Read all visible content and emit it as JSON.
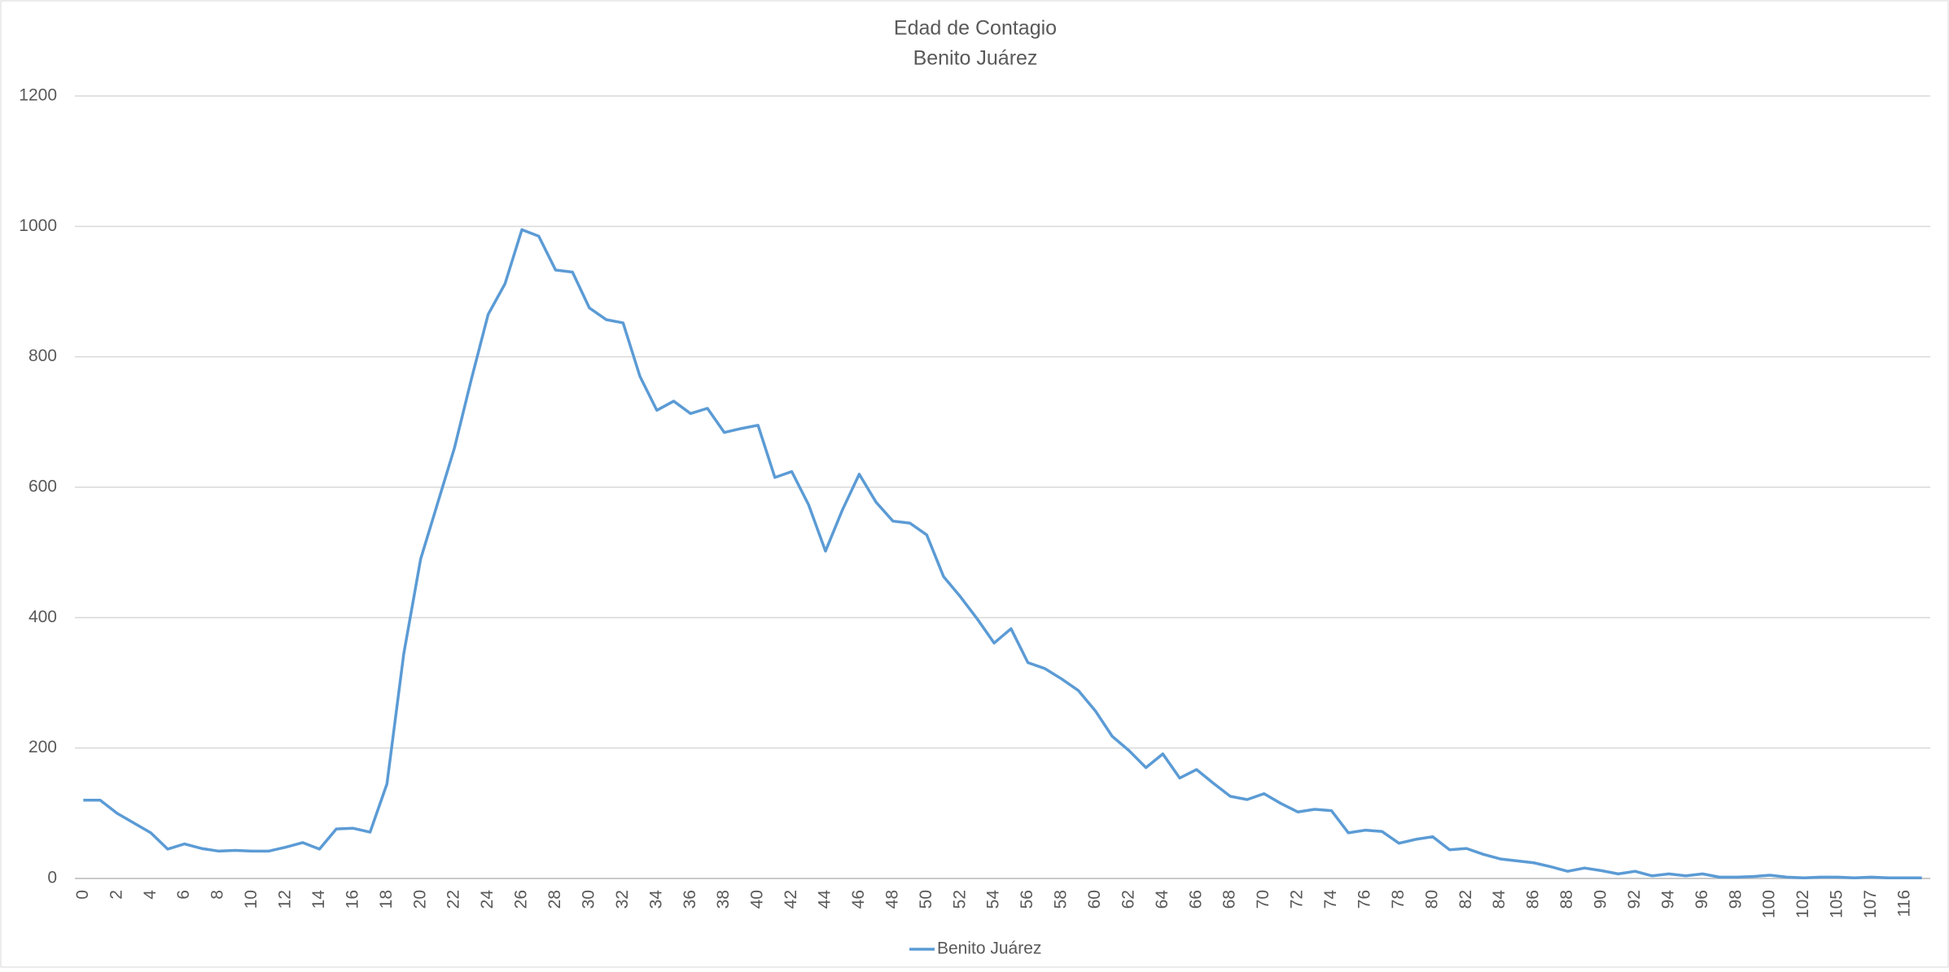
{
  "chart_data": {
    "type": "line",
    "title": "Edad de Contagio",
    "subtitle": "Benito Juárez",
    "categories": [
      0,
      null,
      2,
      null,
      4,
      null,
      6,
      null,
      8,
      null,
      10,
      null,
      12,
      null,
      14,
      null,
      16,
      null,
      18,
      null,
      20,
      null,
      22,
      null,
      24,
      null,
      26,
      null,
      28,
      null,
      30,
      null,
      32,
      null,
      34,
      null,
      36,
      null,
      38,
      null,
      40,
      null,
      42,
      null,
      44,
      null,
      46,
      null,
      48,
      null,
      50,
      null,
      52,
      null,
      54,
      null,
      56,
      null,
      58,
      null,
      60,
      null,
      62,
      null,
      64,
      null,
      66,
      null,
      68,
      null,
      70,
      null,
      72,
      null,
      74,
      null,
      76,
      null,
      78,
      null,
      80,
      null,
      82,
      null,
      84,
      null,
      86,
      null,
      88,
      null,
      90,
      null,
      92,
      null,
      94,
      null,
      96,
      null,
      98,
      null,
      100,
      null,
      102,
      null,
      105,
      null,
      107,
      null,
      116,
      null
    ],
    "series": [
      {
        "name": "Benito Juárez",
        "color": "#5b9bd5",
        "values": [
          120,
          120,
          100,
          85,
          70,
          45,
          53,
          46,
          42,
          43,
          42,
          42,
          48,
          55,
          45,
          76,
          77,
          71,
          145,
          345,
          490,
          575,
          660,
          765,
          865,
          912,
          995,
          985,
          933,
          930,
          875,
          857,
          852,
          770,
          718,
          732,
          713,
          721,
          684,
          690,
          695,
          615,
          624,
          573,
          502,
          565,
          620,
          577,
          548,
          545,
          527,
          463,
          432,
          398,
          361,
          383,
          331,
          322,
          306,
          288,
          257,
          218,
          196,
          170,
          191,
          154,
          167,
          146,
          126,
          121,
          130,
          115,
          102,
          106,
          104,
          70,
          74,
          72,
          54,
          60,
          64,
          44,
          46,
          37,
          30,
          27,
          24,
          18,
          11,
          16,
          12,
          7,
          11,
          4,
          7,
          4,
          7,
          2,
          2,
          3,
          5,
          2,
          1,
          2,
          2,
          1,
          2,
          1,
          1,
          1
        ]
      }
    ],
    "ylim": [
      0,
      1200
    ],
    "yticks": [
      0,
      200,
      400,
      600,
      800,
      1000,
      1200
    ],
    "grid": true,
    "legend": "bottom"
  }
}
